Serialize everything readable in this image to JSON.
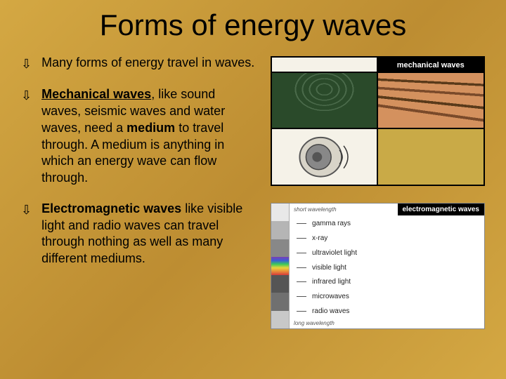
{
  "title": "Forms of energy waves",
  "bullets": {
    "b1": "Many forms of energy travel in waves.",
    "b2_bold1": "Mechanical waves",
    "b2_mid": ", like sound waves, seismic waves and water waves, need a ",
    "b2_bold2": "medium",
    "b2_end": " to travel through. A medium is anything in which an energy wave can flow through.",
    "b3_bold": "Electromagnetic waves",
    "b3_rest": " like visible light and radio waves can travel through nothing as well as many different mediums."
  },
  "mechanical": {
    "header": "mechanical waves",
    "colors": {
      "q1_bg": "#2a4a2a",
      "q2_bg": "#d4915e",
      "q3_bg": "#f5f2e8",
      "q4_bg": "#c9aa47"
    }
  },
  "em": {
    "header": "electromagnetic waves",
    "top_label": "short wavelength",
    "bottom_label": "long wavelength",
    "rows": [
      {
        "label": "gamma rays",
        "color": "#e8e8e8"
      },
      {
        "label": "x-ray",
        "color": "#b5b5b5"
      },
      {
        "label": "ultraviolet light",
        "color": "#888888"
      },
      {
        "label": "visible light",
        "color": "linear"
      },
      {
        "label": "infrared light",
        "color": "#555555"
      },
      {
        "label": "microwaves",
        "color": "#707070"
      },
      {
        "label": "radio waves",
        "color": "#c8c8c8"
      }
    ],
    "visible_colors": [
      "#7a3fb5",
      "#3a5fd4",
      "#3ac95a",
      "#e8d43a",
      "#e88a3a",
      "#d43a3a"
    ]
  },
  "typography": {
    "title_fontsize": 42,
    "body_fontsize": 18,
    "font_family": "Arial"
  },
  "background_gradient": [
    "#d4a843",
    "#c89a3a",
    "#bd8d32"
  ]
}
